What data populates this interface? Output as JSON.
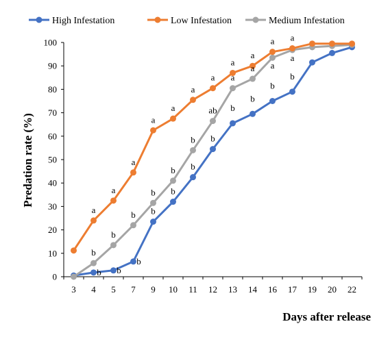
{
  "chart_data": {
    "type": "line",
    "xlabel": "Days after release",
    "ylabel": "Predation rate (%)",
    "ylim": [
      0,
      100
    ],
    "yticks": [
      0,
      10,
      20,
      30,
      40,
      50,
      60,
      70,
      80,
      90,
      100
    ],
    "categories": [
      "3",
      "4",
      "5",
      "7",
      "9",
      "10",
      "11",
      "12",
      "13",
      "14",
      "16",
      "17",
      "19",
      "20",
      "22"
    ],
    "legend_position": "top",
    "grid": false,
    "series": [
      {
        "name": "High Infestation",
        "color": "#4472C4",
        "values": [
          0.5,
          1.8,
          2.7,
          6.5,
          23.5,
          32,
          42.5,
          54.5,
          65.5,
          69.5,
          75,
          79,
          91.5,
          95.5,
          98
        ],
        "labels": [
          "",
          "b",
          "b",
          "b",
          "b",
          "b",
          "b",
          "b",
          "b",
          "b",
          "b",
          "b",
          "",
          "",
          ""
        ]
      },
      {
        "name": "Low Infestation",
        "color": "#ED7D31",
        "values": [
          11.2,
          24,
          32.5,
          44.5,
          62.5,
          67.5,
          75.5,
          80.5,
          87,
          90,
          96,
          97.5,
          99.5,
          99.5,
          99.5
        ],
        "labels": [
          "",
          "a",
          "a",
          "a",
          "a",
          "a",
          "a",
          "a",
          "a",
          "a",
          "a",
          "a",
          "",
          "",
          ""
        ]
      },
      {
        "name": "Medium Infestation",
        "color": "#A5A5A5",
        "values": [
          0,
          5.8,
          13.5,
          22,
          31.5,
          41,
          54,
          66.5,
          80.5,
          84.5,
          93.5,
          96.8,
          98,
          98.5,
          99
        ],
        "labels": [
          "",
          "b",
          "b",
          "b",
          "b",
          "b",
          "b",
          "ab",
          "a",
          "a",
          "a",
          "a",
          "",
          "",
          ""
        ]
      }
    ]
  }
}
